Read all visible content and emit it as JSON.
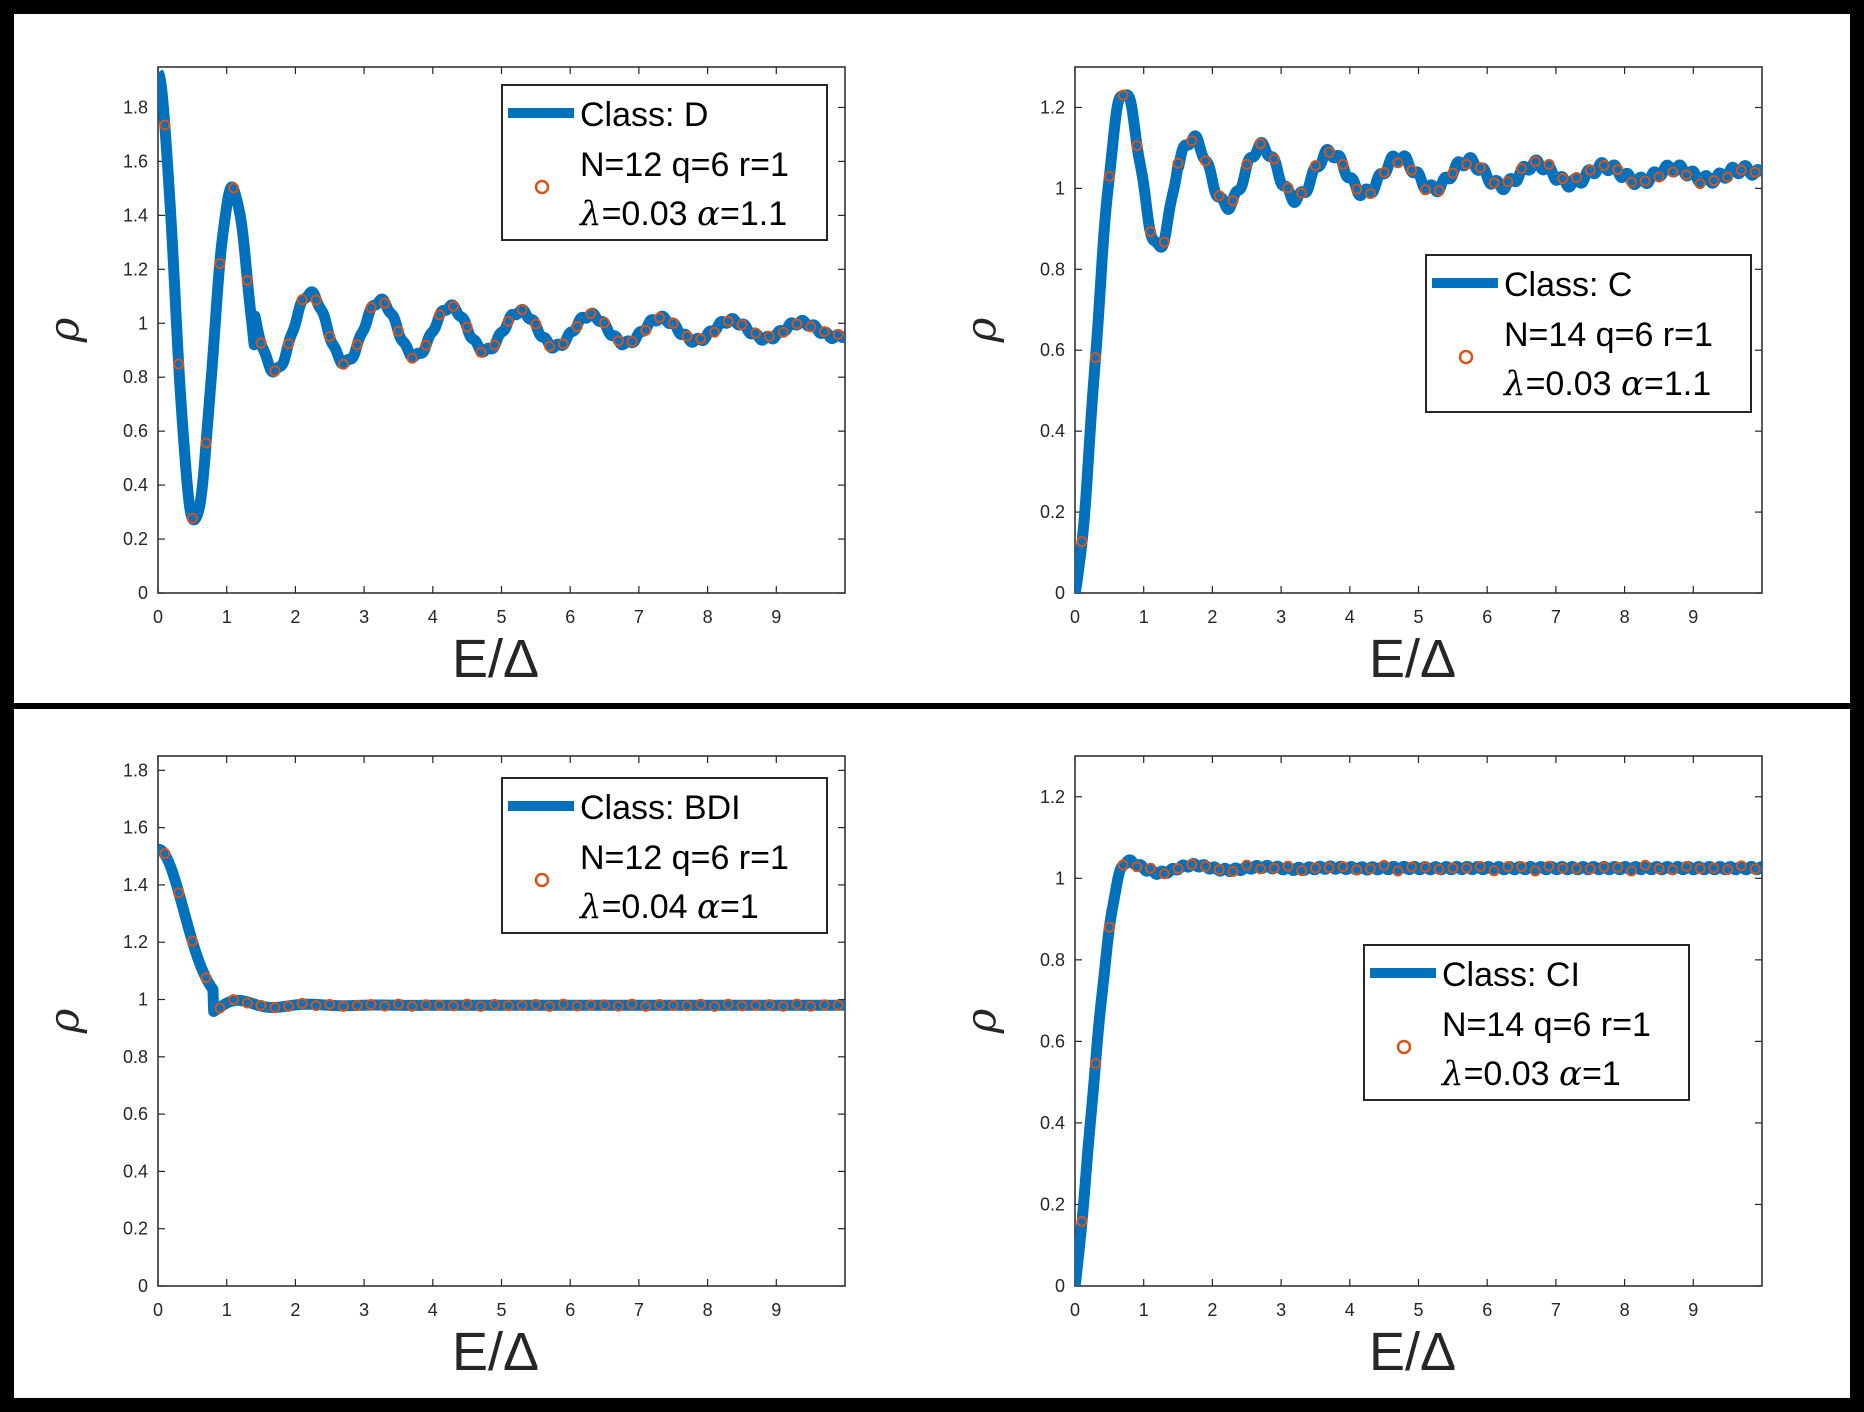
{
  "chart_data": [
    {
      "type": "line",
      "id": "D",
      "x_ticks": [
        "0",
        "1",
        "2",
        "3",
        "4",
        "5",
        "6",
        "7",
        "8",
        "9"
      ],
      "y_ticks": [
        "0",
        "0.2",
        "0.4",
        "0.6",
        "0.8",
        "1",
        "1.2",
        "1.4",
        "1.6",
        "1.8"
      ],
      "xlabel": "E/Δ",
      "ylabel": "ρ",
      "xlim": [
        0,
        10
      ],
      "ylim": [
        0,
        1.95
      ],
      "legend": {
        "line_label": "Class: D",
        "marker_label_1": "N=12 q=6 r=1",
        "marker_label_2_sym1": "λ",
        "marker_label_2_val1": "=0.03 ",
        "marker_label_2_sym2": "α",
        "marker_label_2_val2": "=1.1",
        "placement": "top-right"
      },
      "series": [
        {
          "type": "line",
          "shape": "start",
          "params": {
            "y0": 1.93,
            "A": 0.93,
            "decay": 0.4,
            "offset": 0.97,
            "dip": 0.78
          }
        },
        {
          "type": "scatter",
          "step": 0.2,
          "start": 0.1
        }
      ]
    },
    {
      "type": "line",
      "id": "C",
      "x_ticks": [
        "0",
        "1",
        "2",
        "3",
        "4",
        "5",
        "6",
        "7",
        "8",
        "9"
      ],
      "y_ticks": [
        "0",
        "0.2",
        "0.4",
        "0.6",
        "0.8",
        "1",
        "1.2"
      ],
      "xlabel": "E/Δ",
      "ylabel": "ρ",
      "xlim": [
        0,
        10
      ],
      "ylim": [
        0,
        1.3
      ],
      "legend": {
        "line_label": "Class: C",
        "marker_label_1": "N=14 q=6 r=1",
        "marker_label_2_sym1": "λ",
        "marker_label_2_val1": "=0.03 ",
        "marker_label_2_sym2": "α",
        "marker_label_2_val2": "=1.1",
        "placement": "upper-right"
      },
      "series": [
        {
          "type": "line",
          "shape": "rise",
          "params": {
            "peak": 1.24,
            "peak_x": 0.72,
            "offset": 1.02,
            "A": 0.25,
            "decay": 0.28
          }
        },
        {
          "type": "scatter",
          "step": 0.2,
          "start": 0.1
        }
      ]
    },
    {
      "type": "line",
      "id": "BDI",
      "x_ticks": [
        "0",
        "1",
        "2",
        "3",
        "4",
        "5",
        "6",
        "7",
        "8",
        "9"
      ],
      "y_ticks": [
        "0",
        "0.2",
        "0.4",
        "0.6",
        "0.8",
        "1",
        "1.2",
        "1.4",
        "1.6",
        "1.8"
      ],
      "xlabel": "E/Δ",
      "ylabel": "ρ",
      "xlim": [
        0,
        10
      ],
      "ylim": [
        0,
        1.85
      ],
      "legend": {
        "line_label": "Class: BDI",
        "marker_label_1": "N=12 q=6 r=1",
        "marker_label_2_sym1": "λ",
        "marker_label_2_val1": "=0.04 ",
        "marker_label_2_sym2": "α",
        "marker_label_2_val2": "=1",
        "placement": "top-right"
      },
      "series": [
        {
          "type": "line",
          "shape": "start",
          "params": {
            "y0": 1.53,
            "A": 0.55,
            "decay": 1.2,
            "offset": 0.98,
            "dip": 0.99
          }
        },
        {
          "type": "scatter",
          "step": 0.2,
          "start": 0.1
        }
      ]
    },
    {
      "type": "line",
      "id": "CI",
      "x_ticks": [
        "0",
        "1",
        "2",
        "3",
        "4",
        "5",
        "6",
        "7",
        "8",
        "9"
      ],
      "y_ticks": [
        "0",
        "0.2",
        "0.4",
        "0.6",
        "0.8",
        "1",
        "1.2"
      ],
      "xlabel": "E/Δ",
      "ylabel": "ρ",
      "xlim": [
        0,
        10
      ],
      "ylim": [
        0,
        1.3
      ],
      "legend": {
        "line_label": "Class: CI",
        "marker_label_1": "N=14 q=6 r=1",
        "marker_label_2_sym1": "λ",
        "marker_label_2_val1": "=0.03 ",
        "marker_label_2_sym2": "α",
        "marker_label_2_val2": "=1",
        "placement": "center-right"
      },
      "series": [
        {
          "type": "line",
          "shape": "rise",
          "params": {
            "peak": 1.04,
            "peak_x": 0.72,
            "offset": 1.025,
            "A": 0.04,
            "decay": 0.9
          }
        },
        {
          "type": "scatter",
          "step": 0.2,
          "start": 0.1
        }
      ]
    }
  ],
  "colors": {
    "line": "#0072BD",
    "marker": "#D95319",
    "axis": "#262626"
  }
}
